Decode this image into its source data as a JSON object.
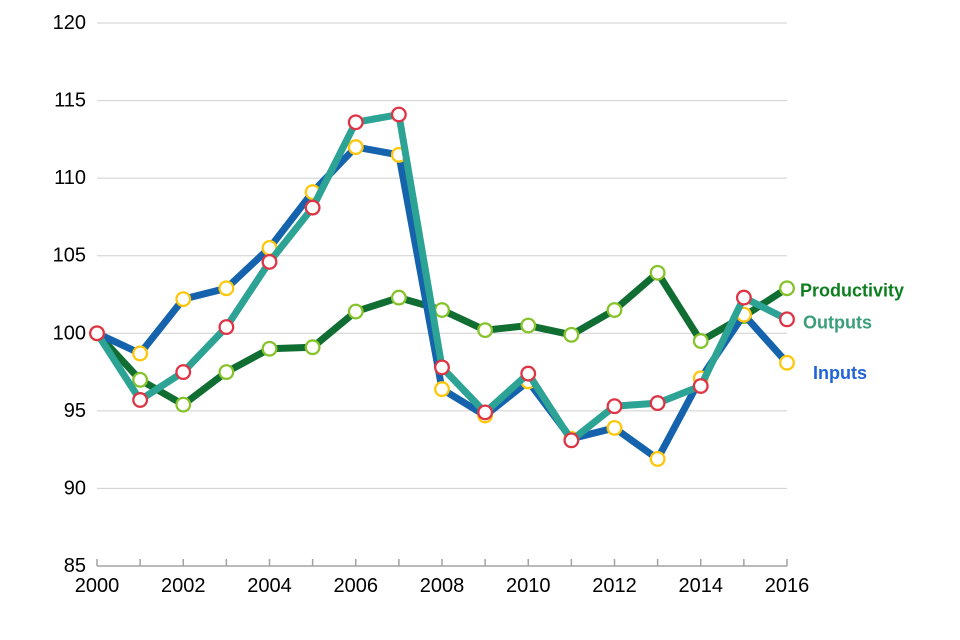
{
  "chart_data": {
    "type": "line",
    "title": "",
    "xlabel": "",
    "ylabel": "",
    "x": [
      2000,
      2001,
      2002,
      2003,
      2004,
      2005,
      2006,
      2007,
      2008,
      2009,
      2010,
      2011,
      2012,
      2013,
      2014,
      2015,
      2016
    ],
    "x_labeled_ticks": [
      "2000",
      "2002",
      "2004",
      "2006",
      "2008",
      "2010",
      "2012",
      "2014",
      "2016"
    ],
    "y_ticks": [
      85,
      90,
      95,
      100,
      105,
      110,
      115,
      120
    ],
    "ylim": [
      85,
      120
    ],
    "grid": "horizontal",
    "legend_position": "right-of-last-point",
    "background_color": "#ffffff",
    "grid_color": "#cfcfcf",
    "axis_color": "#a3a3a3",
    "tick_label_color": "#000000",
    "marker_fill": "#ffffff",
    "series": [
      {
        "name": "Productivity",
        "line_color": "#106e33",
        "marker_color": "#86c32a",
        "label_color": "#0d7f1f",
        "values": [
          100,
          97.0,
          95.4,
          97.5,
          99.0,
          99.1,
          101.4,
          102.3,
          101.5,
          100.2,
          100.5,
          99.9,
          101.5,
          103.9,
          99.5,
          101.1,
          102.9
        ]
      },
      {
        "name": "Inputs",
        "line_color": "#1463ac",
        "marker_color": "#fec70c",
        "label_color": "#2263d6",
        "values": [
          100,
          98.7,
          102.2,
          102.9,
          105.5,
          109.1,
          112.0,
          111.5,
          96.4,
          94.7,
          96.9,
          93.2,
          93.9,
          91.9,
          97.1,
          101.2,
          98.1
        ]
      },
      {
        "name": "Outputs",
        "line_color": "#2ca394",
        "marker_color": "#dd3545",
        "label_color": "#3b9e7a",
        "values": [
          100,
          95.7,
          97.5,
          100.4,
          104.6,
          108.1,
          113.6,
          114.1,
          97.8,
          94.9,
          97.4,
          93.1,
          95.3,
          95.5,
          96.6,
          102.3,
          100.9
        ]
      }
    ]
  }
}
